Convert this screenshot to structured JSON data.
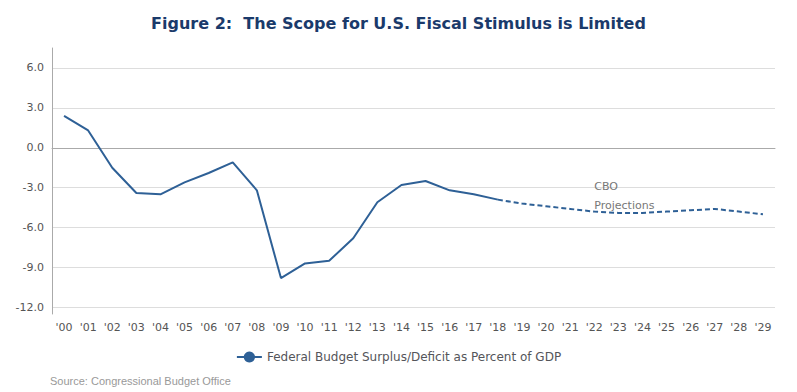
{
  "chart_data": {
    "type": "line",
    "title": "Figure 2:  The Scope for U.S. Fiscal Stimulus is Limited",
    "source": "Source: Congressional Budget Office",
    "x": [
      2000,
      2001,
      2002,
      2003,
      2004,
      2005,
      2006,
      2007,
      2008,
      2009,
      2010,
      2011,
      2012,
      2013,
      2014,
      2015,
      2016,
      2017,
      2018,
      2019,
      2020,
      2021,
      2022,
      2023,
      2024,
      2025,
      2026,
      2027,
      2028,
      2029
    ],
    "series": [
      {
        "name": "Federal Budget Surplus/Deficit as Percent of GDP",
        "color": "#2e6096",
        "line_style": "solid",
        "values": [
          2.4,
          1.3,
          -1.5,
          -3.4,
          -3.5,
          -2.6,
          -1.9,
          -1.1,
          -3.2,
          -9.8,
          -8.7,
          -8.5,
          -6.8,
          -4.1,
          -2.8,
          -2.5,
          -3.2,
          -3.5,
          -3.9,
          null,
          null,
          null,
          null,
          null,
          null,
          null,
          null,
          null,
          null,
          null
        ]
      },
      {
        "name": "Federal Budget Surplus/Deficit as Percent of GDP",
        "color": "#2e6096",
        "line_style": "dashed",
        "values": [
          null,
          null,
          null,
          null,
          null,
          null,
          null,
          null,
          null,
          null,
          null,
          null,
          null,
          null,
          null,
          null,
          null,
          null,
          -3.9,
          -4.2,
          -4.4,
          -4.6,
          -4.8,
          -4.9,
          -4.9,
          -4.8,
          -4.7,
          -4.6,
          -4.8,
          -5.0
        ]
      }
    ],
    "annotations": [
      {
        "text": "CBO",
        "x": 2022,
        "y": -3.3
      },
      {
        "text": "Projections",
        "x": 2022,
        "y": -3.9
      }
    ],
    "xlim": [
      1999.5,
      2029.5
    ],
    "xticks": [
      {
        "value": 2000,
        "label": "'00"
      },
      {
        "value": 2001,
        "label": "'01"
      },
      {
        "value": 2002,
        "label": "'02"
      },
      {
        "value": 2003,
        "label": "'03"
      },
      {
        "value": 2004,
        "label": "'04"
      },
      {
        "value": 2005,
        "label": "'05"
      },
      {
        "value": 2006,
        "label": "'06"
      },
      {
        "value": 2007,
        "label": "'07"
      },
      {
        "value": 2008,
        "label": "'08"
      },
      {
        "value": 2009,
        "label": "'09"
      },
      {
        "value": 2010,
        "label": "'10"
      },
      {
        "value": 2011,
        "label": "'11"
      },
      {
        "value": 2012,
        "label": "'12"
      },
      {
        "value": 2013,
        "label": "'13"
      },
      {
        "value": 2014,
        "label": "'14"
      },
      {
        "value": 2015,
        "label": "'15"
      },
      {
        "value": 2016,
        "label": "'16"
      },
      {
        "value": 2017,
        "label": "'17"
      },
      {
        "value": 2018,
        "label": "'18"
      },
      {
        "value": 2019,
        "label": "'19"
      },
      {
        "value": 2020,
        "label": "'20"
      },
      {
        "value": 2021,
        "label": "'21"
      },
      {
        "value": 2022,
        "label": "'22"
      },
      {
        "value": 2023,
        "label": "'23"
      },
      {
        "value": 2024,
        "label": "'24"
      },
      {
        "value": 2025,
        "label": "'25"
      },
      {
        "value": 2026,
        "label": "'26"
      },
      {
        "value": 2027,
        "label": "'27"
      },
      {
        "value": 2028,
        "label": "'28"
      },
      {
        "value": 2029,
        "label": "'29"
      }
    ],
    "ylim": [
      -12.5,
      7.5
    ],
    "yticks": [
      {
        "value": -12.0,
        "label": "-12.0"
      },
      {
        "value": -9.0,
        "label": "-9.0"
      },
      {
        "value": -6.0,
        "label": "-6.0"
      },
      {
        "value": -3.0,
        "label": "-3.0"
      },
      {
        "value": 0.0,
        "label": "0.0"
      },
      {
        "value": 3.0,
        "label": "3.0"
      },
      {
        "value": 6.0,
        "label": "6.0"
      }
    ],
    "grid": true,
    "legend": "bottom"
  }
}
